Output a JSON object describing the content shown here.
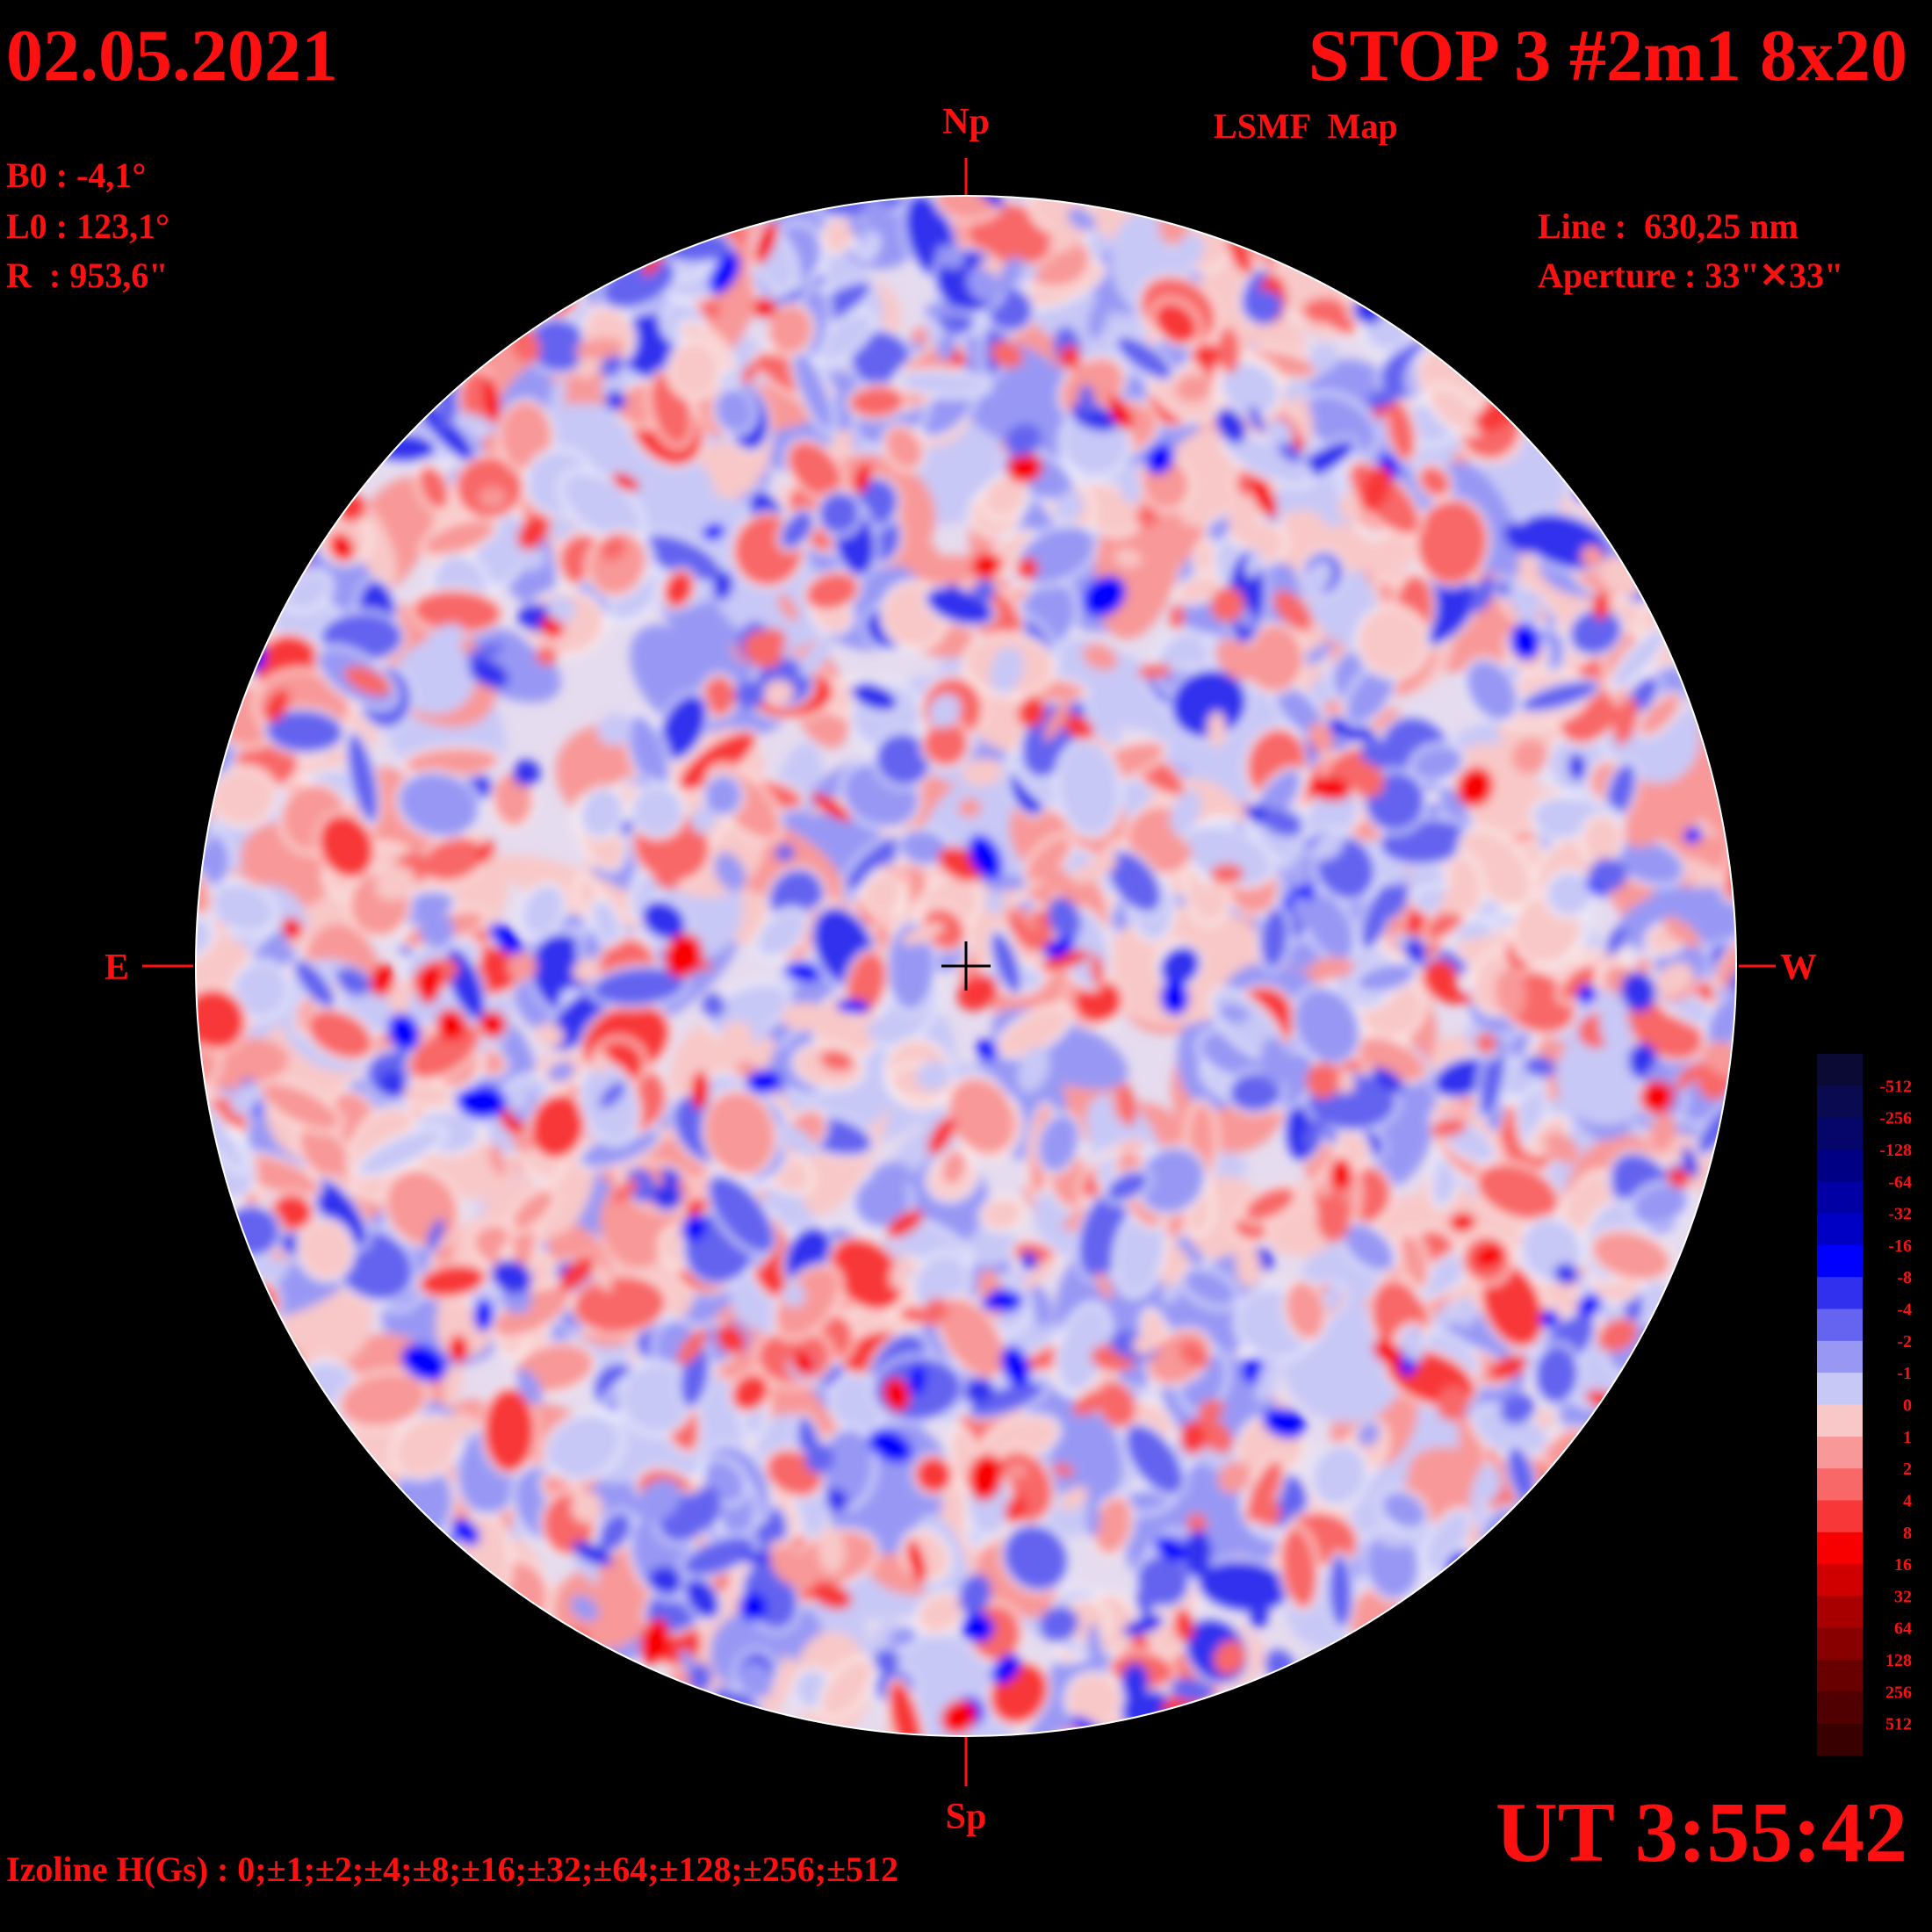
{
  "header": {
    "date": "02.05.2021",
    "title": "STOP 3 #2m1 8x20",
    "subtitle": "LSMF  Map"
  },
  "params": {
    "b0": "B0 : -4,1°",
    "l0": "L0 : 123,1°",
    "r": "R  : 953,6\""
  },
  "instrument": {
    "line": "Line :  630,25 nm",
    "aperture": "Aperture : 33\"✕33\""
  },
  "directions": {
    "north": "Np",
    "south": "Sp",
    "east": "E",
    "west": "W"
  },
  "time": "UT 3:55:42",
  "izoline": "Izoline H(Gs) : 0;±1;±2;±4;±8;±16;±32;±64;±128;±256;±512",
  "legend": {
    "labels": [
      "-512",
      "-256",
      "-128",
      "-64",
      "-32",
      "-16",
      "-8",
      "-4",
      "-2",
      "-1",
      "0",
      "1",
      "2",
      "4",
      "8",
      "16",
      "32",
      "64",
      "128",
      "256",
      "512"
    ],
    "colors": [
      "#0a0a35",
      "#0a0a50",
      "#05056a",
      "#000085",
      "#0000a5",
      "#0000c5",
      "#0000ff",
      "#3030ee",
      "#6464f0",
      "#9898f4",
      "#c8c8f6",
      "#f8c8c8",
      "#f89898",
      "#f86868",
      "#f83838",
      "#f80000",
      "#d00000",
      "#a80000",
      "#880000",
      "#680000",
      "#500000",
      "#380000"
    ]
  }
}
